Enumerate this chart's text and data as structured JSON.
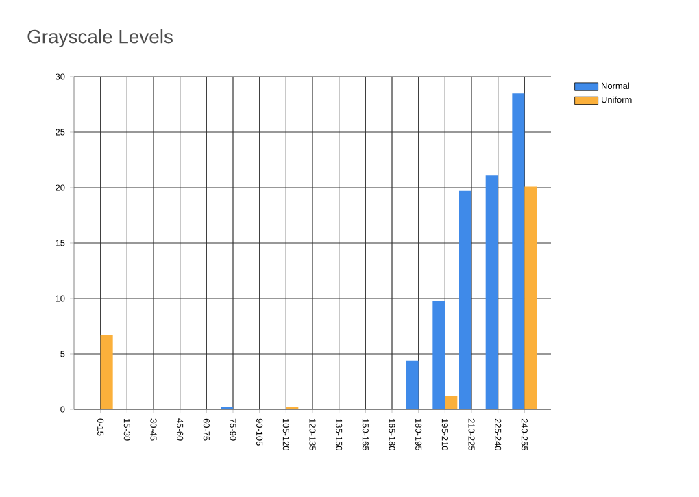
{
  "chart_data": {
    "type": "bar",
    "title": "Grayscale Levels",
    "categories": [
      "0-15",
      "15-30",
      "30-45",
      "45-60",
      "60-75",
      "75-90",
      "90-105",
      "105-120",
      "120-135",
      "135-150",
      "150-165",
      "165-180",
      "180-195",
      "195-210",
      "210-225",
      "225-240",
      "240-255"
    ],
    "series": [
      {
        "name": "Normal",
        "color": "#3f8ae9",
        "values": [
          0,
          0,
          0,
          0,
          0,
          0.2,
          0,
          0,
          0,
          0,
          0,
          0,
          4.4,
          9.8,
          19.7,
          21.1,
          28.5
        ]
      },
      {
        "name": "Uniform",
        "color": "#fbb03b",
        "values": [
          6.7,
          0,
          0,
          0,
          0,
          0,
          0,
          0.2,
          0,
          0,
          0,
          0,
          0,
          1.2,
          0,
          0,
          20.1
        ]
      }
    ],
    "ylim": [
      0,
      30
    ],
    "yticks": [
      0,
      5,
      10,
      15,
      20,
      25,
      30
    ],
    "grid": true,
    "legend": "top right"
  }
}
